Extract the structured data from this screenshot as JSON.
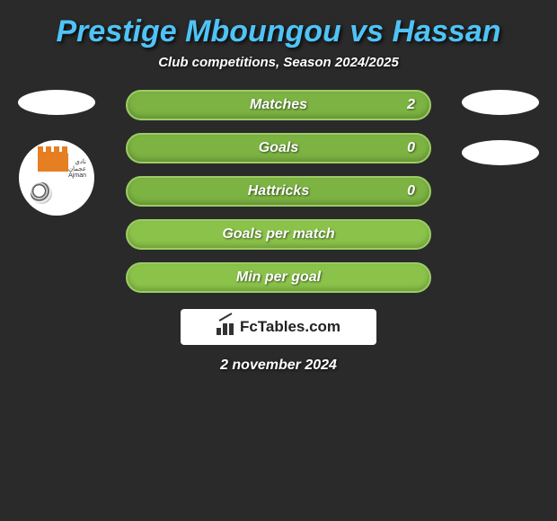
{
  "title": "Prestige Mboungou vs Hassan",
  "subtitle": "Club competitions, Season 2024/2025",
  "stats": [
    {
      "label": "Matches",
      "value": "2",
      "bg": "#7cb342"
    },
    {
      "label": "Goals",
      "value": "0",
      "bg": "#7cb342"
    },
    {
      "label": "Hattricks",
      "value": "0",
      "bg": "#7cb342"
    },
    {
      "label": "Goals per match",
      "value": "",
      "bg": "#8bc34a"
    },
    {
      "label": "Min per goal",
      "value": "",
      "bg": "#8bc34a"
    }
  ],
  "brand": "FcTables.com",
  "date": "2 november 2024",
  "colors": {
    "title_color": "#4fc3f7",
    "background": "#2a2a2a",
    "bar_border": "#9ccc65",
    "text": "#ffffff"
  }
}
